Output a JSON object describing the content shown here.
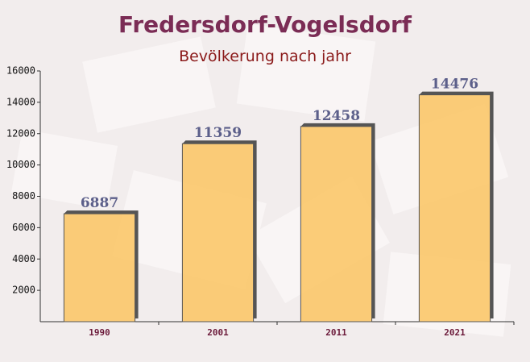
{
  "chart_data": {
    "type": "bar",
    "title": "Fredersdorf-Vogelsdorf",
    "subtitle": "Bevölkerung nach jahr",
    "categories": [
      "1990",
      "2001",
      "2011",
      "2021"
    ],
    "values": [
      6887,
      11359,
      12458,
      14476
    ],
    "color": "#fcc462",
    "ylim": [
      0,
      16000
    ],
    "yticks": [
      2000,
      4000,
      6000,
      8000,
      10000,
      12000,
      14000,
      16000
    ]
  }
}
